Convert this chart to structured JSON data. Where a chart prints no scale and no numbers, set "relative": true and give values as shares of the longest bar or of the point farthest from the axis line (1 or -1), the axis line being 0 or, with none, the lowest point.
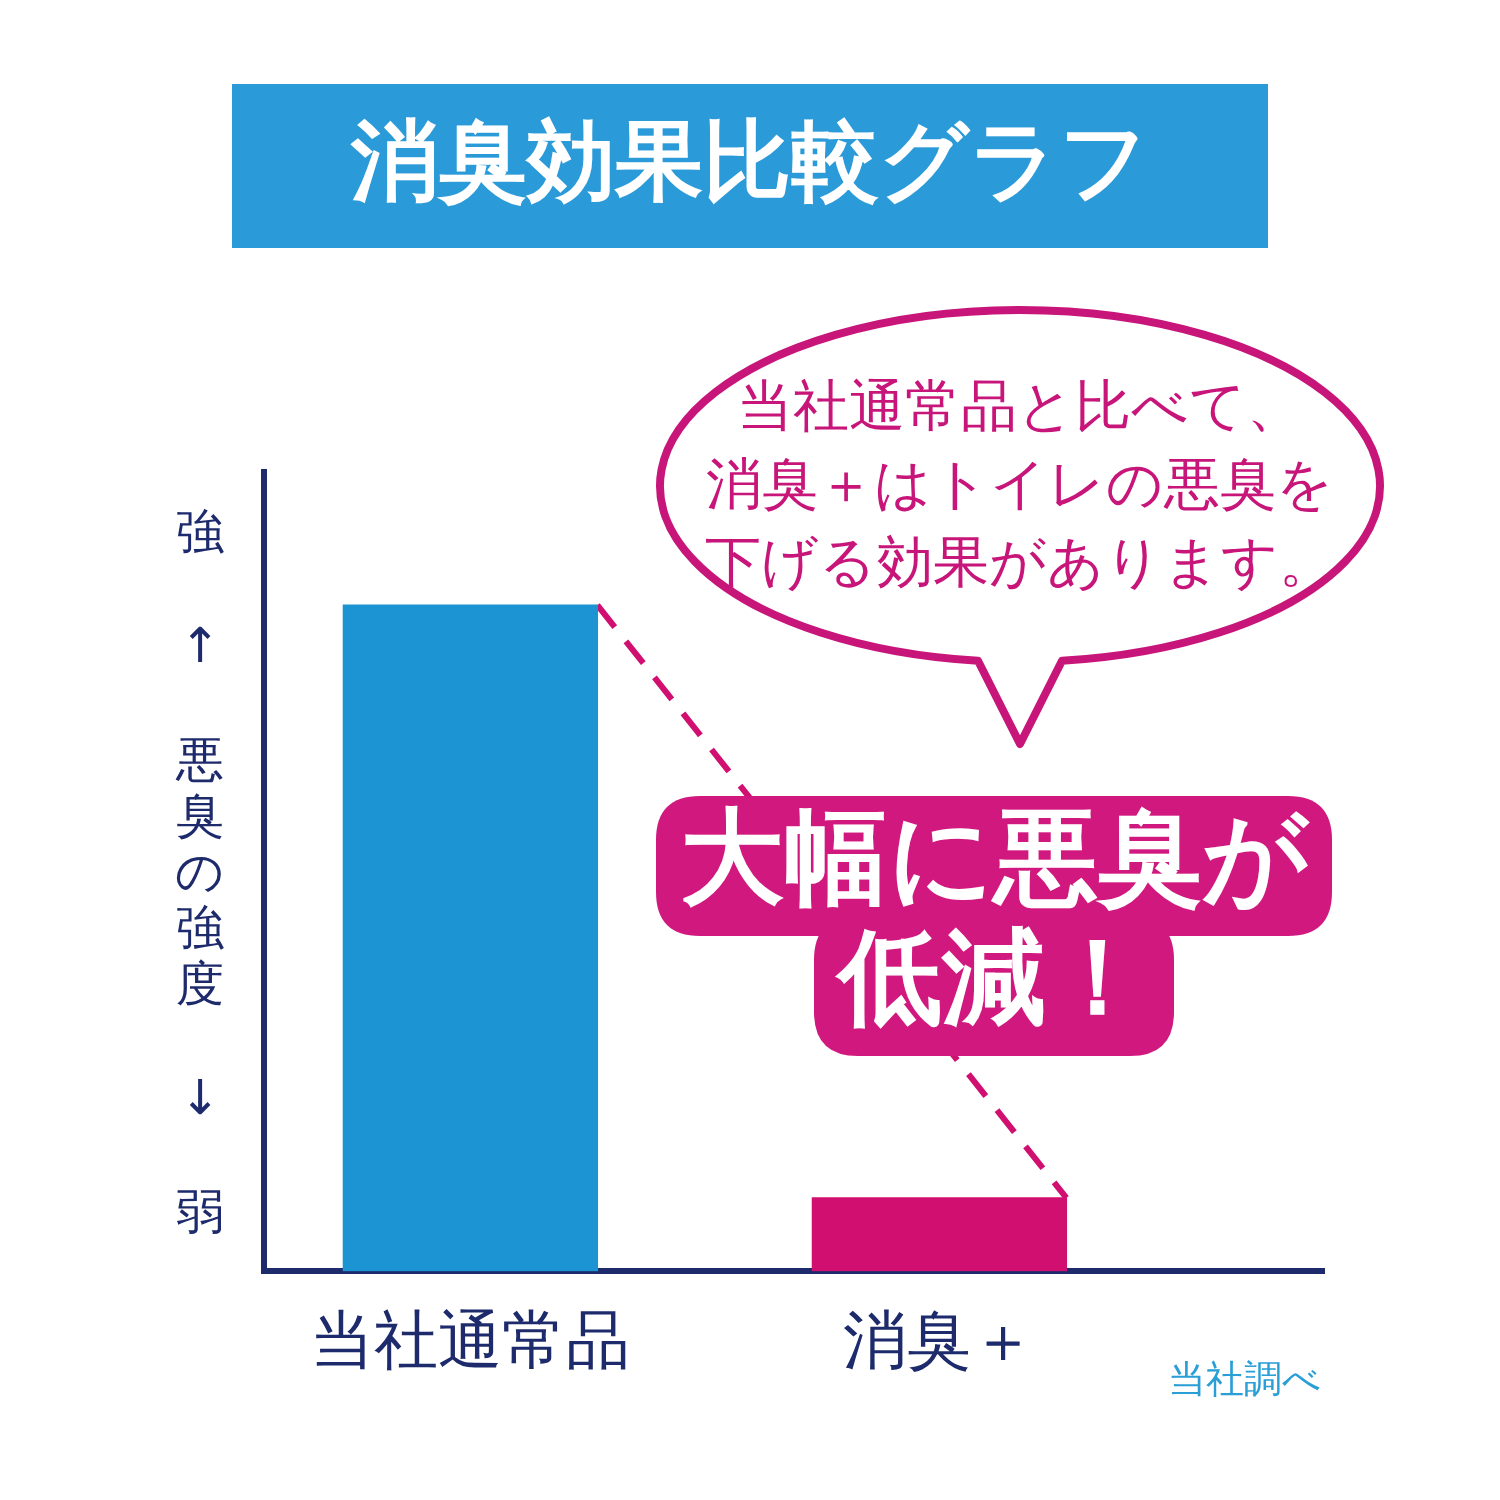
{
  "chart_data": {
    "type": "bar",
    "title": "消臭効果比較グラフ",
    "ylabel": "強 ↑ 悪臭の強度 ↓ 弱",
    "categories": [
      "当社通常品",
      "消臭＋"
    ],
    "values": [
      1,
      0.11
    ],
    "colors": [
      "#1c93d3",
      "#d10f70"
    ],
    "relative": true,
    "legend": false,
    "grid": false,
    "annotations": [
      "当社通常品と比べて、消臭＋はトイレの悪臭を下げる効果があります。",
      "大幅に悪臭が低減！",
      "当社調べ"
    ]
  }
}
